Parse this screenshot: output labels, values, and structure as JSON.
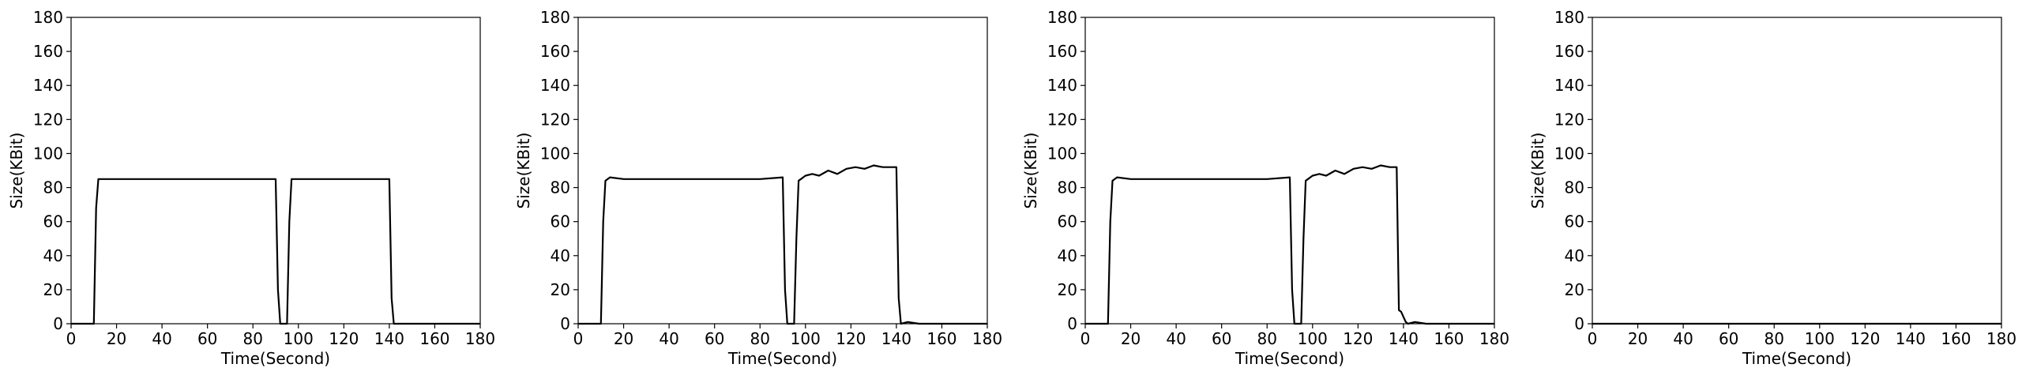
{
  "chart_data": [
    {
      "type": "line",
      "xlabel": "Time(Second)",
      "ylabel": "Size(KBit)",
      "xlim": [
        0,
        180
      ],
      "ylim": [
        0,
        180
      ],
      "xticks": [
        "0",
        "20",
        "40",
        "60",
        "80",
        "100",
        "120",
        "140",
        "160",
        "180"
      ],
      "yticks": [
        "0",
        "20",
        "40",
        "60",
        "80",
        "100",
        "120",
        "140",
        "160",
        "180"
      ],
      "grid": false,
      "series": [
        {
          "color": "#000000",
          "x": [
            0,
            10,
            11,
            12,
            20,
            40,
            60,
            80,
            90,
            91,
            92,
            95,
            96,
            97,
            98,
            100,
            120,
            140,
            141,
            142,
            145,
            160,
            180
          ],
          "y": [
            0,
            0,
            68,
            85,
            85,
            85,
            85,
            85,
            85,
            20,
            0,
            0,
            60,
            85,
            85,
            85,
            85,
            85,
            15,
            0,
            0,
            0,
            0
          ]
        }
      ]
    },
    {
      "type": "line",
      "xlabel": "Time(Second)",
      "ylabel": "Size(KBit)",
      "xlim": [
        0,
        180
      ],
      "ylim": [
        0,
        180
      ],
      "xticks": [
        "0",
        "20",
        "40",
        "60",
        "80",
        "100",
        "120",
        "140",
        "160",
        "180"
      ],
      "yticks": [
        "0",
        "20",
        "40",
        "60",
        "80",
        "100",
        "120",
        "140",
        "160",
        "180"
      ],
      "grid": false,
      "series": [
        {
          "color": "#000000",
          "x": [
            0,
            10,
            11,
            12,
            14,
            20,
            40,
            60,
            80,
            90,
            91,
            92,
            95,
            96,
            97,
            98,
            100,
            103,
            106,
            110,
            114,
            118,
            122,
            126,
            130,
            134,
            138,
            140,
            141,
            142,
            145,
            150,
            160,
            170,
            180
          ],
          "y": [
            0,
            0,
            60,
            84,
            86,
            85,
            85,
            85,
            85,
            86,
            20,
            0,
            0,
            50,
            84,
            85,
            87,
            88,
            87,
            90,
            88,
            91,
            92,
            91,
            93,
            92,
            92,
            92,
            15,
            0,
            1,
            0,
            0,
            0,
            0
          ]
        }
      ]
    },
    {
      "type": "line",
      "xlabel": "Time(Second)",
      "ylabel": "Size(KBit)",
      "xlim": [
        0,
        180
      ],
      "ylim": [
        0,
        180
      ],
      "xticks": [
        "0",
        "20",
        "40",
        "60",
        "80",
        "100",
        "120",
        "140",
        "160",
        "180"
      ],
      "yticks": [
        "0",
        "20",
        "40",
        "60",
        "80",
        "100",
        "120",
        "140",
        "160",
        "180"
      ],
      "grid": false,
      "series": [
        {
          "color": "#000000",
          "x": [
            0,
            10,
            11,
            12,
            14,
            20,
            40,
            60,
            80,
            90,
            91,
            92,
            95,
            96,
            97,
            98,
            100,
            103,
            106,
            110,
            114,
            118,
            122,
            126,
            130,
            134,
            137,
            138,
            139,
            140,
            141,
            142,
            145,
            150,
            160,
            170,
            180
          ],
          "y": [
            0,
            0,
            60,
            84,
            86,
            85,
            85,
            85,
            85,
            86,
            20,
            0,
            0,
            50,
            84,
            85,
            87,
            88,
            87,
            90,
            88,
            91,
            92,
            91,
            93,
            92,
            92,
            8,
            7,
            4,
            1,
            0,
            1,
            0,
            0,
            0,
            0
          ]
        }
      ]
    },
    {
      "type": "line",
      "xlabel": "Time(Second)",
      "ylabel": "Size(KBit)",
      "xlim": [
        0,
        180
      ],
      "ylim": [
        0,
        180
      ],
      "xticks": [
        "0",
        "20",
        "40",
        "60",
        "80",
        "100",
        "120",
        "140",
        "160",
        "180"
      ],
      "yticks": [
        "0",
        "20",
        "40",
        "60",
        "80",
        "100",
        "120",
        "140",
        "160",
        "180"
      ],
      "grid": false,
      "series": [
        {
          "color": "#000000",
          "x": [
            0,
            180
          ],
          "y": [
            0,
            0
          ]
        }
      ]
    }
  ]
}
